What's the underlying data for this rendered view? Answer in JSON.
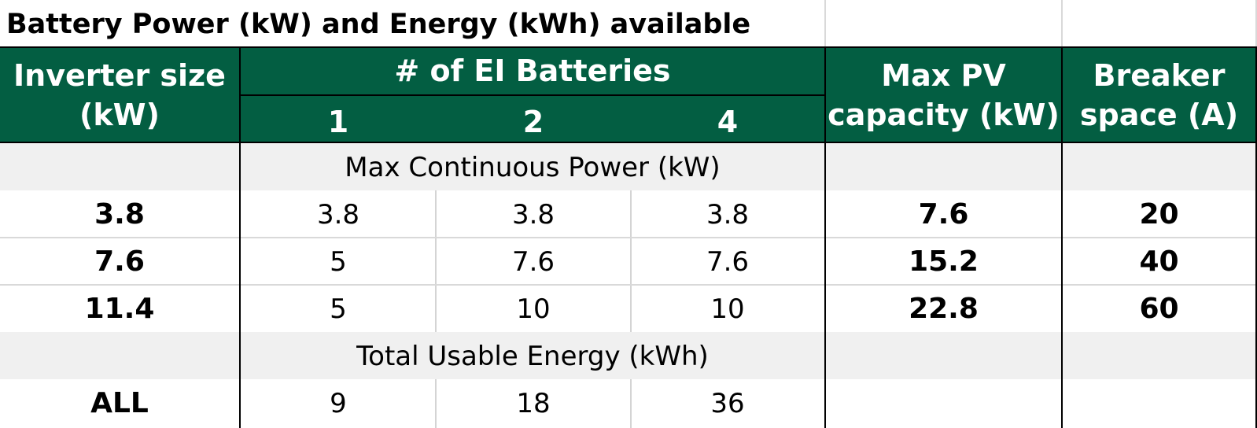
{
  "title": "Battery Power (kW) and Energy (kWh) available",
  "headers": {
    "inverter": [
      "Inverter size",
      "(kW)"
    ],
    "batteries": "# of EI Batteries",
    "counts": [
      "1",
      "2",
      "4"
    ],
    "maxpv": [
      "Max PV",
      "capacity (kW)"
    ],
    "breaker": [
      "Breaker",
      "space (A)"
    ]
  },
  "sections": {
    "power": "Max Continuous Power (kW)",
    "energy": "Total Usable Energy (kWh)"
  },
  "power_rows": [
    {
      "inverter": "3.8",
      "b1": "3.8",
      "b2": "3.8",
      "b4": "3.8",
      "pv": "7.6",
      "breaker": "20"
    },
    {
      "inverter": "7.6",
      "b1": "5",
      "b2": "7.6",
      "b4": "7.6",
      "pv": "15.2",
      "breaker": "40"
    },
    {
      "inverter": "11.4",
      "b1": "5",
      "b2": "10",
      "b4": "10",
      "pv": "22.8",
      "breaker": "60"
    }
  ],
  "energy_row": {
    "inverter": "ALL",
    "b1": "9",
    "b2": "18",
    "b4": "36"
  },
  "colors": {
    "header_bg": "#035e42",
    "band_bg": "#f0f0f0"
  }
}
